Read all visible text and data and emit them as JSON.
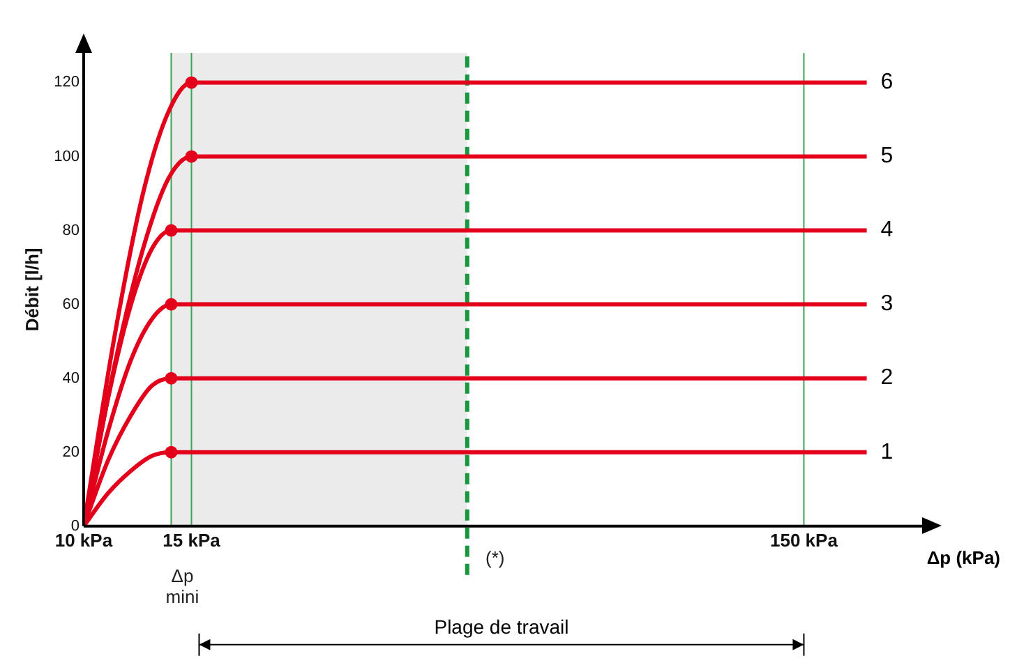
{
  "chart_data": {
    "type": "line",
    "ylabel": "Débit [l/h]",
    "xlabel": "Δp (kPa)",
    "log": "x",
    "xlim": [
      10,
      234
    ],
    "ylim": [
      0,
      128
    ],
    "xticks": [
      {
        "value": 10,
        "label": "10 kPa"
      },
      {
        "value": 15,
        "label": "15 kPa"
      },
      {
        "value": 150,
        "label": "150 kPa"
      }
    ],
    "yticks": [
      0,
      20,
      40,
      60,
      80,
      100,
      120
    ],
    "marker": "circle",
    "line_style": "solid",
    "legend": false,
    "grid": false,
    "series": [
      {
        "name": "1",
        "color": "#e3001b",
        "marker": "none",
        "x": [
          10,
          10.975,
          11.95,
          12.925,
          13.9,
          190
        ],
        "values": [
          0,
          9,
          15,
          19,
          20,
          20
        ]
      },
      {
        "name": "2",
        "color": "#e3001b",
        "marker": "none",
        "x": [
          10,
          10.975,
          11.95,
          12.925,
          13.9,
          190
        ],
        "values": [
          0,
          18,
          30,
          38,
          40,
          40
        ]
      },
      {
        "name": "3",
        "color": "#e3001b",
        "marker": "none",
        "x": [
          10,
          10.975,
          11.95,
          12.925,
          13.9,
          190
        ],
        "values": [
          0,
          26,
          45,
          56,
          60,
          60
        ]
      },
      {
        "name": "4",
        "color": "#e3001b",
        "marker": "none",
        "x": [
          10,
          10.975,
          11.95,
          12.925,
          13.9,
          190
        ],
        "values": [
          0,
          35,
          60,
          75,
          80,
          80
        ]
      },
      {
        "name": "5",
        "color": "#e3001b",
        "marker": "none",
        "x": [
          10,
          11.25,
          12.5,
          13.75,
          15,
          190
        ],
        "values": [
          0,
          44,
          75,
          94,
          100,
          100
        ]
      },
      {
        "name": "6",
        "color": "#e3001b",
        "marker": "none",
        "x": [
          10,
          11.25,
          12.5,
          13.75,
          15,
          190
        ],
        "values": [
          0,
          52,
          90,
          112,
          120,
          120
        ]
      },
      {
        "type": "scatter",
        "color": "#e3001b",
        "x": [
          13.9,
          13.9,
          13.9,
          13.9,
          15,
          15
        ],
        "values": [
          20,
          40,
          60,
          80,
          100,
          120
        ]
      }
    ],
    "bands": [
      {
        "axis": "x",
        "from": 13.9,
        "to": 42.3,
        "color": "#ebebeb"
      }
    ],
    "ref_lines": [
      {
        "axis": "x",
        "value": 13.9,
        "label": "Δp mini",
        "color": "#3aa655",
        "line_style": "solid"
      },
      {
        "axis": "x",
        "value": 15,
        "color": "#3aa655",
        "line_style": "solid"
      },
      {
        "axis": "x",
        "value": 42.3,
        "label": "(*)",
        "color": "#1a9641",
        "line_style": "dashed"
      },
      {
        "axis": "x",
        "value": 150,
        "color": "#3aa655",
        "line_style": "solid"
      }
    ],
    "annotations": [
      "Plage de travail"
    ]
  }
}
